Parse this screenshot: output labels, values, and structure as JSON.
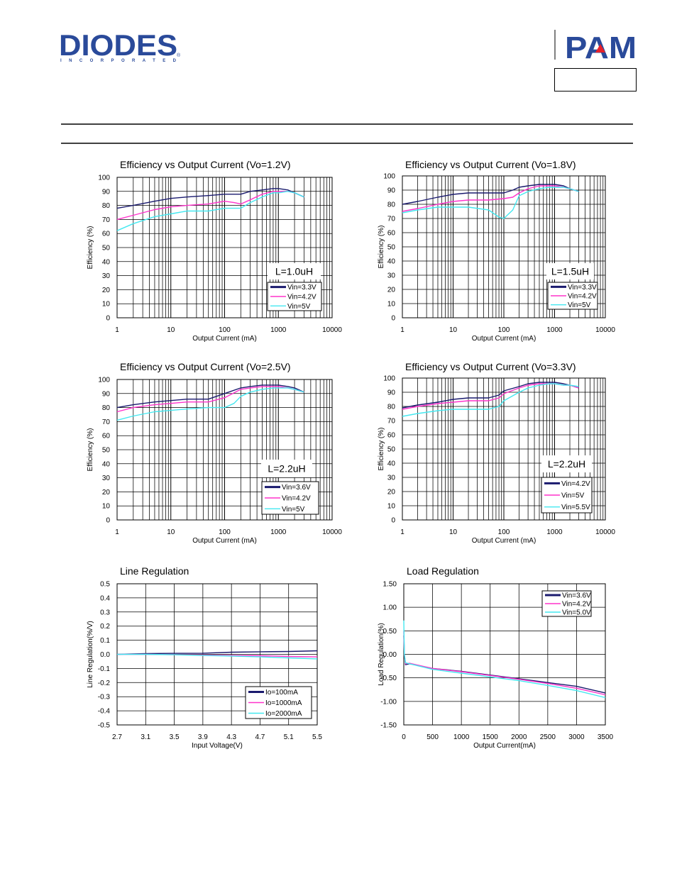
{
  "header": {
    "company_logo_text": "DIODES",
    "company_logo_sub": "INCORPORATED",
    "brand_logo_text": "PAM",
    "colors": {
      "brand_blue": "#2a4a9a",
      "brand_red": "#e8212a"
    }
  },
  "colors": {
    "navy": "#1a1a6e",
    "magenta": "#ff33cc",
    "cyan": "#44e8f0"
  },
  "chart_data": [
    {
      "type": "line",
      "xscale": "log",
      "title": "Efficiency vs Output Current (Vo=1.2V)",
      "xlabel": "Output Current (mA)",
      "ylabel": "Efficiency (%)",
      "xlim": [
        1,
        10000
      ],
      "ylim": [
        0,
        100
      ],
      "xticks": [
        1,
        10,
        100,
        1000,
        10000
      ],
      "xticklabels": [
        "1",
        "10",
        "100",
        "1000",
        "10000"
      ],
      "yticks": [
        0,
        10,
        20,
        30,
        40,
        50,
        60,
        70,
        80,
        90,
        100
      ],
      "inductor_label": "L=1.0uH",
      "series": [
        {
          "name": "Vin=3.3V",
          "color": "navy",
          "x": [
            1,
            2,
            5,
            10,
            20,
            50,
            100,
            200,
            300,
            500,
            800,
            1000,
            1500,
            2000,
            3000
          ],
          "y": [
            78,
            80,
            83,
            85,
            86,
            87,
            88,
            88,
            90,
            91,
            92,
            92,
            91,
            89,
            86
          ]
        },
        {
          "name": "Vin=4.2V",
          "color": "magenta",
          "x": [
            1,
            2,
            5,
            10,
            20,
            50,
            100,
            150,
            200,
            300,
            500,
            800,
            1000,
            1500,
            2000,
            3000
          ],
          "y": [
            70,
            73,
            77,
            79,
            80,
            81,
            83,
            82,
            81,
            84,
            88,
            90,
            90,
            90,
            89,
            86
          ]
        },
        {
          "name": "Vin=5V",
          "color": "cyan",
          "x": [
            1,
            2,
            5,
            10,
            20,
            50,
            100,
            150,
            200,
            300,
            500,
            800,
            1000,
            1500,
            2000,
            3000
          ],
          "y": [
            62,
            67,
            72,
            74,
            76,
            76,
            78,
            78,
            78,
            82,
            86,
            89,
            89,
            90,
            89,
            86
          ]
        }
      ]
    },
    {
      "type": "line",
      "xscale": "log",
      "title": "Efficiency vs Output Current (Vo=1.8V)",
      "xlabel": "Output Current (mA)",
      "ylabel": "Efficiency (%)",
      "xlim": [
        1,
        10000
      ],
      "ylim": [
        0,
        100
      ],
      "xticks": [
        1,
        10,
        100,
        1000,
        10000
      ],
      "xticklabels": [
        "1",
        "10",
        "100",
        "1000",
        "10000"
      ],
      "yticks": [
        0,
        10,
        20,
        30,
        40,
        50,
        60,
        70,
        80,
        90,
        100
      ],
      "inductor_label": "L=1.5uH",
      "series": [
        {
          "name": "Vin=3.3V",
          "color": "navy",
          "x": [
            1,
            2,
            5,
            10,
            20,
            50,
            100,
            150,
            200,
            300,
            500,
            800,
            1000,
            1500,
            2000,
            3000
          ],
          "y": [
            80,
            82,
            85,
            87,
            88,
            88,
            88,
            90,
            92,
            93,
            94,
            94,
            94,
            93,
            91,
            89
          ]
        },
        {
          "name": "Vin=4.2V",
          "color": "magenta",
          "x": [
            1,
            2,
            5,
            10,
            20,
            50,
            100,
            150,
            200,
            300,
            500,
            800,
            1000,
            1500,
            2000,
            3000
          ],
          "y": [
            75,
            77,
            80,
            82,
            83,
            83,
            84,
            85,
            88,
            91,
            93,
            93,
            93,
            92,
            91,
            89
          ]
        },
        {
          "name": "Vin=5V",
          "color": "cyan",
          "x": [
            1,
            2,
            5,
            10,
            20,
            50,
            80,
            100,
            150,
            200,
            300,
            500,
            800,
            1000,
            1500,
            2000,
            3000
          ],
          "y": [
            74,
            76,
            78,
            78,
            78,
            76,
            71,
            70,
            76,
            86,
            89,
            91,
            92,
            92,
            92,
            91,
            89
          ]
        }
      ]
    },
    {
      "type": "line",
      "xscale": "log",
      "title": "Efficiency vs Output Current (Vo=2.5V)",
      "xlabel": "Output Current (mA)",
      "ylabel": "Efficiency (%)",
      "xlim": [
        1,
        10000
      ],
      "ylim": [
        0,
        100
      ],
      "xticks": [
        1,
        10,
        100,
        1000,
        10000
      ],
      "xticklabels": [
        "1",
        "10",
        "100",
        "1000",
        "10000"
      ],
      "yticks": [
        0,
        10,
        20,
        30,
        40,
        50,
        60,
        70,
        80,
        90,
        100
      ],
      "inductor_label": "L=2.2uH",
      "series": [
        {
          "name": "Vin=3.6V",
          "color": "navy",
          "x": [
            1,
            2,
            5,
            10,
            20,
            50,
            100,
            200,
            300,
            500,
            800,
            1000,
            1500,
            2000,
            3000
          ],
          "y": [
            80,
            82,
            84,
            85,
            86,
            86,
            90,
            94,
            95,
            96,
            96,
            96,
            95,
            94,
            91
          ]
        },
        {
          "name": "Vin=4.2V",
          "color": "magenta",
          "x": [
            1,
            2,
            5,
            10,
            20,
            50,
            100,
            200,
            300,
            500,
            800,
            1000,
            1500,
            2000,
            3000
          ],
          "y": [
            77,
            80,
            82,
            83,
            84,
            84,
            87,
            93,
            94,
            95,
            95,
            95,
            94,
            93,
            91
          ]
        },
        {
          "name": "Vin=5V",
          "color": "cyan",
          "x": [
            1,
            2,
            5,
            10,
            20,
            50,
            100,
            150,
            200,
            300,
            500,
            800,
            1000,
            1500,
            2000,
            3000
          ],
          "y": [
            71,
            74,
            77,
            78,
            79,
            80,
            80,
            83,
            88,
            91,
            93,
            94,
            94,
            94,
            93,
            91
          ]
        }
      ]
    },
    {
      "type": "line",
      "xscale": "log",
      "title": "Efficiency vs Output Current (Vo=3.3V)",
      "xlabel": "Output Current (mA)",
      "ylabel": "Efficiency (%)",
      "xlim": [
        1,
        10000
      ],
      "ylim": [
        0,
        100
      ],
      "xticks": [
        1,
        10,
        100,
        1000,
        10000
      ],
      "xticklabels": [
        "1",
        "10",
        "100",
        "1000",
        "10000"
      ],
      "yticks": [
        0,
        10,
        20,
        30,
        40,
        50,
        60,
        70,
        80,
        90,
        100
      ],
      "inductor_label": "L=2.2uH",
      "series": [
        {
          "name": "Vin=4.2V",
          "color": "navy",
          "x": [
            1,
            2,
            5,
            10,
            20,
            50,
            80,
            100,
            200,
            300,
            500,
            800,
            1000,
            1500,
            2000,
            3000
          ],
          "y": [
            79,
            81,
            83,
            85,
            86,
            86,
            88,
            91,
            94,
            96,
            97,
            97,
            97,
            96,
            95,
            93
          ]
        },
        {
          "name": "Vin=5V",
          "color": "magenta",
          "x": [
            1,
            2,
            5,
            10,
            20,
            50,
            80,
            100,
            200,
            300,
            500,
            800,
            1000,
            1500,
            2000,
            3000
          ],
          "y": [
            78,
            80,
            82,
            83,
            84,
            84,
            86,
            89,
            93,
            95,
            96,
            96,
            96,
            95,
            95,
            93
          ]
        },
        {
          "name": "Vin=5.5V",
          "color": "cyan",
          "x": [
            1,
            2,
            5,
            10,
            20,
            50,
            80,
            100,
            200,
            300,
            500,
            800,
            1000,
            1500,
            2000,
            3000
          ],
          "y": [
            73,
            75,
            77,
            78,
            78,
            78,
            80,
            84,
            90,
            93,
            95,
            96,
            96,
            95,
            95,
            94
          ]
        }
      ]
    },
    {
      "type": "line",
      "xscale": "linear",
      "title": "Line Regulation",
      "xlabel": "Input Voltage(V)",
      "ylabel": "Line Regulation(%/V)",
      "xlim": [
        2.7,
        5.5
      ],
      "ylim": [
        -0.5,
        0.5
      ],
      "xticks": [
        2.7,
        3.1,
        3.5,
        3.9,
        4.3,
        4.7,
        5.1,
        5.5
      ],
      "xticklabels": [
        "2.7",
        "3.1",
        "3.5",
        "3.9",
        "4.3",
        "4.7",
        "5.1",
        "5.5"
      ],
      "yticks": [
        -0.5,
        -0.4,
        -0.3,
        -0.2,
        -0.1,
        0,
        0.1,
        0.2,
        0.3,
        0.4,
        0.5
      ],
      "yticklabels": [
        "-0.5",
        "-0.4",
        "-0.3",
        "-0.2",
        "-0.1",
        "0.0",
        "0.1",
        "0.2",
        "0.3",
        "0.4",
        "0.5"
      ],
      "series": [
        {
          "name": "Io=100mA",
          "color": "navy",
          "x": [
            2.7,
            3.1,
            3.5,
            3.9,
            4.3,
            4.7,
            5.1,
            5.5
          ],
          "y": [
            0.0,
            0.005,
            0.007,
            0.008,
            0.015,
            0.018,
            0.02,
            0.025
          ]
        },
        {
          "name": "Io=1000mA",
          "color": "magenta",
          "x": [
            2.7,
            3.1,
            3.5,
            3.9,
            4.3,
            4.7,
            5.1,
            5.5
          ],
          "y": [
            0.0,
            0.0,
            -0.002,
            -0.005,
            -0.008,
            -0.01,
            -0.015,
            -0.018
          ]
        },
        {
          "name": "Io=2000mA",
          "color": "cyan",
          "x": [
            2.7,
            3.1,
            3.5,
            3.9,
            4.3,
            4.7,
            5.1,
            5.5
          ],
          "y": [
            0.0,
            0.0,
            -0.003,
            -0.008,
            -0.012,
            -0.018,
            -0.025,
            -0.032
          ]
        }
      ]
    },
    {
      "type": "line",
      "xscale": "linear",
      "title": "Load Regulation",
      "xlabel": "Output Current(mA)",
      "ylabel": "Load Regulation(%)",
      "xlim": [
        0,
        3500
      ],
      "ylim": [
        -1.5,
        1.5
      ],
      "xticks": [
        0,
        500,
        1000,
        1500,
        2000,
        2500,
        3000,
        3500
      ],
      "xticklabels": [
        "0",
        "500",
        "1000",
        "1500",
        "2000",
        "2500",
        "3000",
        "3500"
      ],
      "yticks": [
        -1.5,
        -1.0,
        -0.5,
        0,
        0.5,
        1.0,
        1.5
      ],
      "yticklabels": [
        "-1.50",
        "-1.00",
        "-0.50",
        "0.00",
        "0.50",
        "1.00",
        "1.50"
      ],
      "series": [
        {
          "name": "Vin=3.6V",
          "color": "navy",
          "x": [
            0,
            10,
            30,
            100,
            500,
            1000,
            1500,
            2000,
            2500,
            3000,
            3500
          ],
          "y": [
            0.4,
            0.0,
            -0.22,
            -0.2,
            -0.3,
            -0.36,
            -0.44,
            -0.52,
            -0.6,
            -0.68,
            -0.82
          ]
        },
        {
          "name": "Vin=4.2V",
          "color": "magenta",
          "x": [
            0,
            10,
            30,
            100,
            500,
            1000,
            1500,
            2000,
            2500,
            3000,
            3500
          ],
          "y": [
            0.5,
            0.0,
            -0.2,
            -0.19,
            -0.3,
            -0.37,
            -0.45,
            -0.53,
            -0.62,
            -0.72,
            -0.86
          ]
        },
        {
          "name": "Vin=5.0V",
          "color": "cyan",
          "x": [
            0,
            10,
            30,
            100,
            500,
            1000,
            1500,
            2000,
            2500,
            3000,
            3500
          ],
          "y": [
            0.72,
            0.0,
            -0.18,
            -0.2,
            -0.32,
            -0.4,
            -0.48,
            -0.56,
            -0.66,
            -0.77,
            -0.92
          ]
        }
      ]
    }
  ]
}
